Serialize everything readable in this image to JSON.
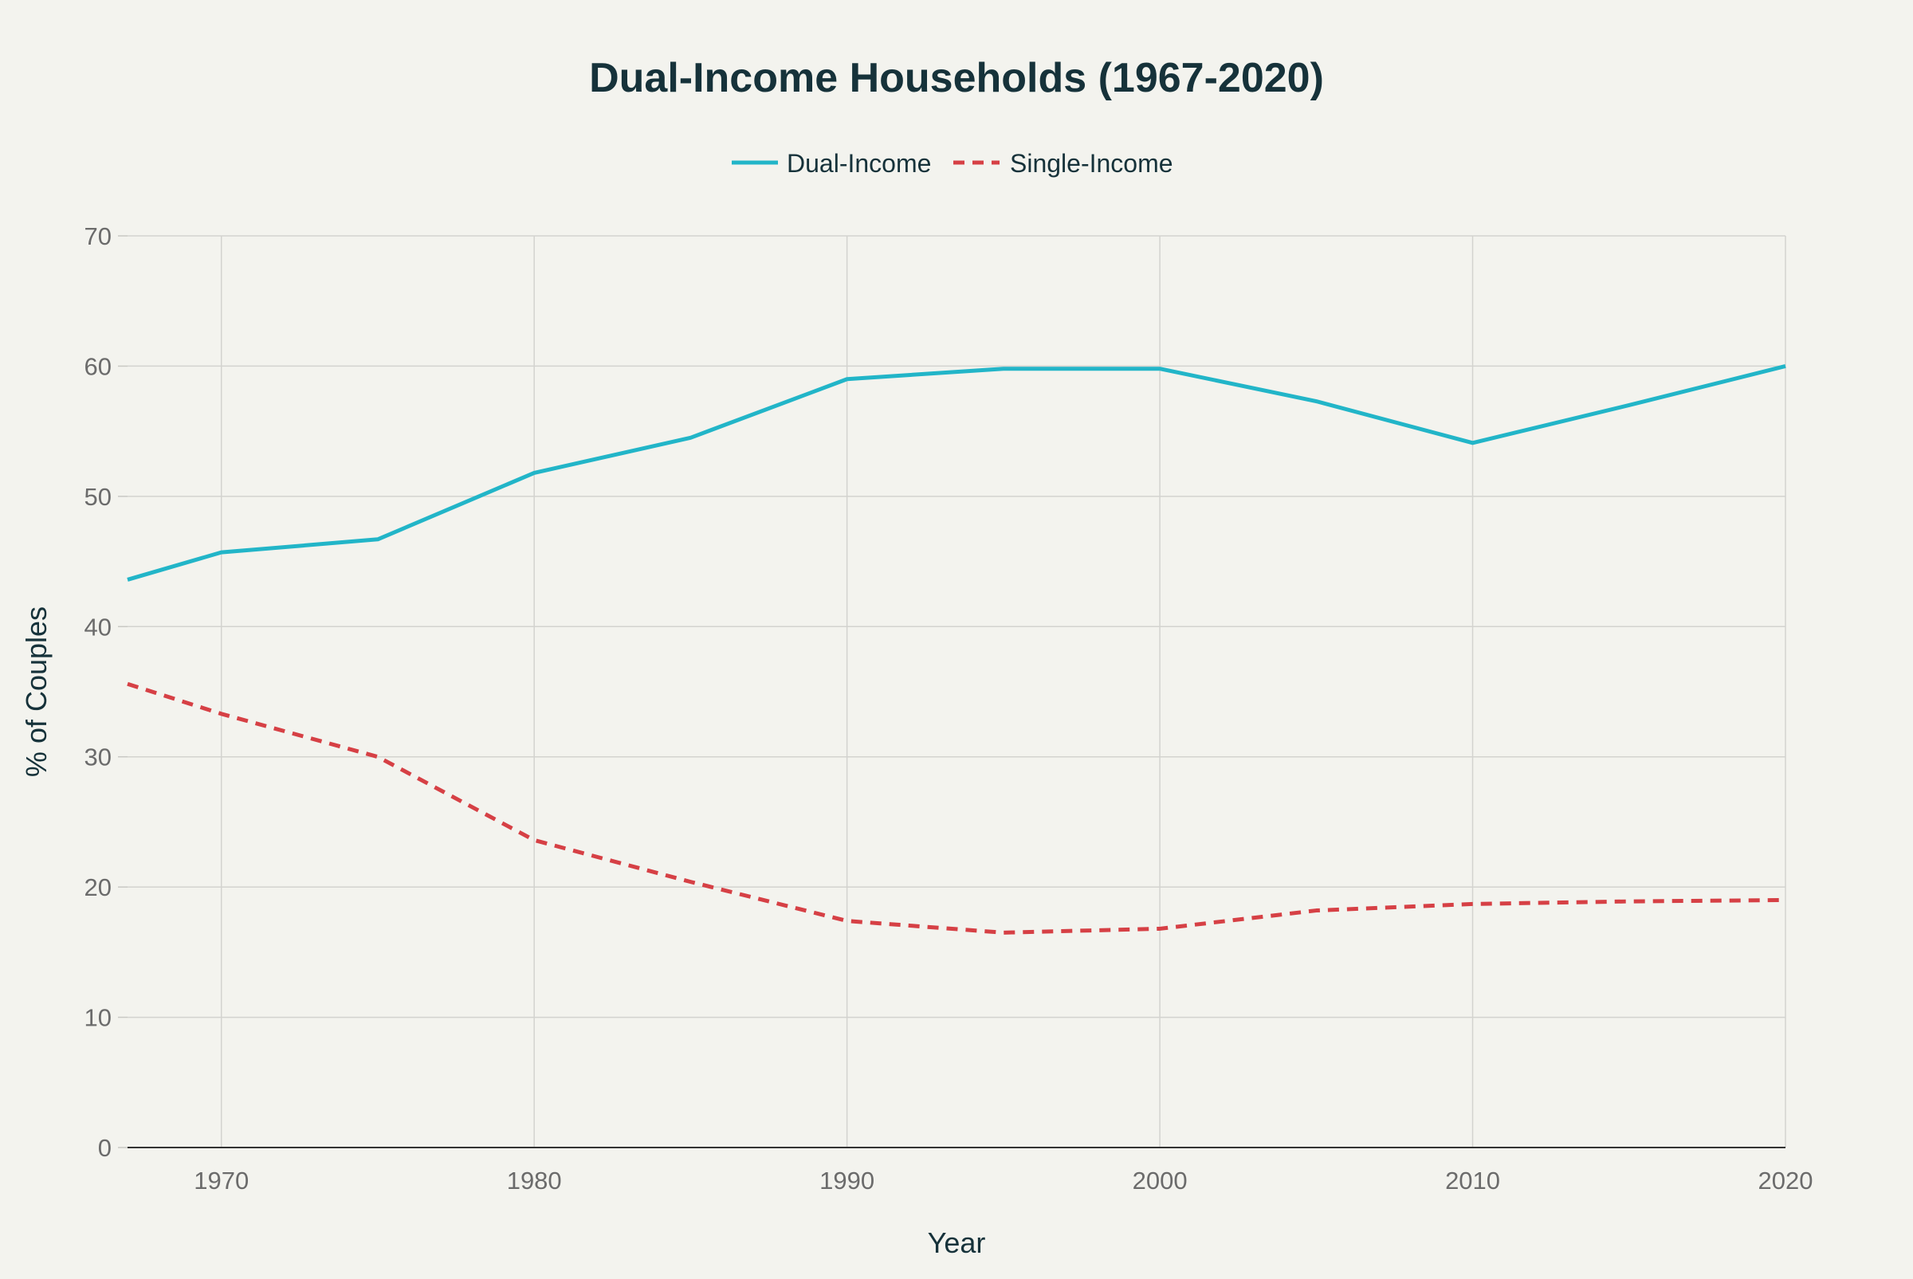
{
  "chart_data": {
    "type": "line",
    "title": "Dual-Income Households (1967-2020)",
    "xlabel": "Year",
    "ylabel": "% of Couples",
    "x": [
      1967,
      1970,
      1975,
      1980,
      1985,
      1990,
      1995,
      2000,
      2005,
      2010,
      2015,
      2020
    ],
    "xlim": [
      1967,
      2020
    ],
    "ylim": [
      0,
      70
    ],
    "x_ticks": [
      1970,
      1980,
      1990,
      2000,
      2010,
      2020
    ],
    "y_ticks": [
      0,
      10,
      20,
      30,
      40,
      50,
      60,
      70
    ],
    "grid": true,
    "legend_position": "top-center",
    "series": [
      {
        "name": "Dual-Income",
        "color": "#22b5c8",
        "line_style": "solid",
        "values": [
          43.6,
          45.7,
          46.7,
          51.8,
          54.5,
          59.0,
          59.8,
          59.8,
          57.3,
          54.1,
          57.0,
          60.0
        ]
      },
      {
        "name": "Single-Income",
        "color": "#d64045",
        "line_style": "dashed",
        "values": [
          35.6,
          33.3,
          30.0,
          23.6,
          20.4,
          17.4,
          16.5,
          16.8,
          18.2,
          18.7,
          18.9,
          19.0
        ]
      }
    ]
  }
}
